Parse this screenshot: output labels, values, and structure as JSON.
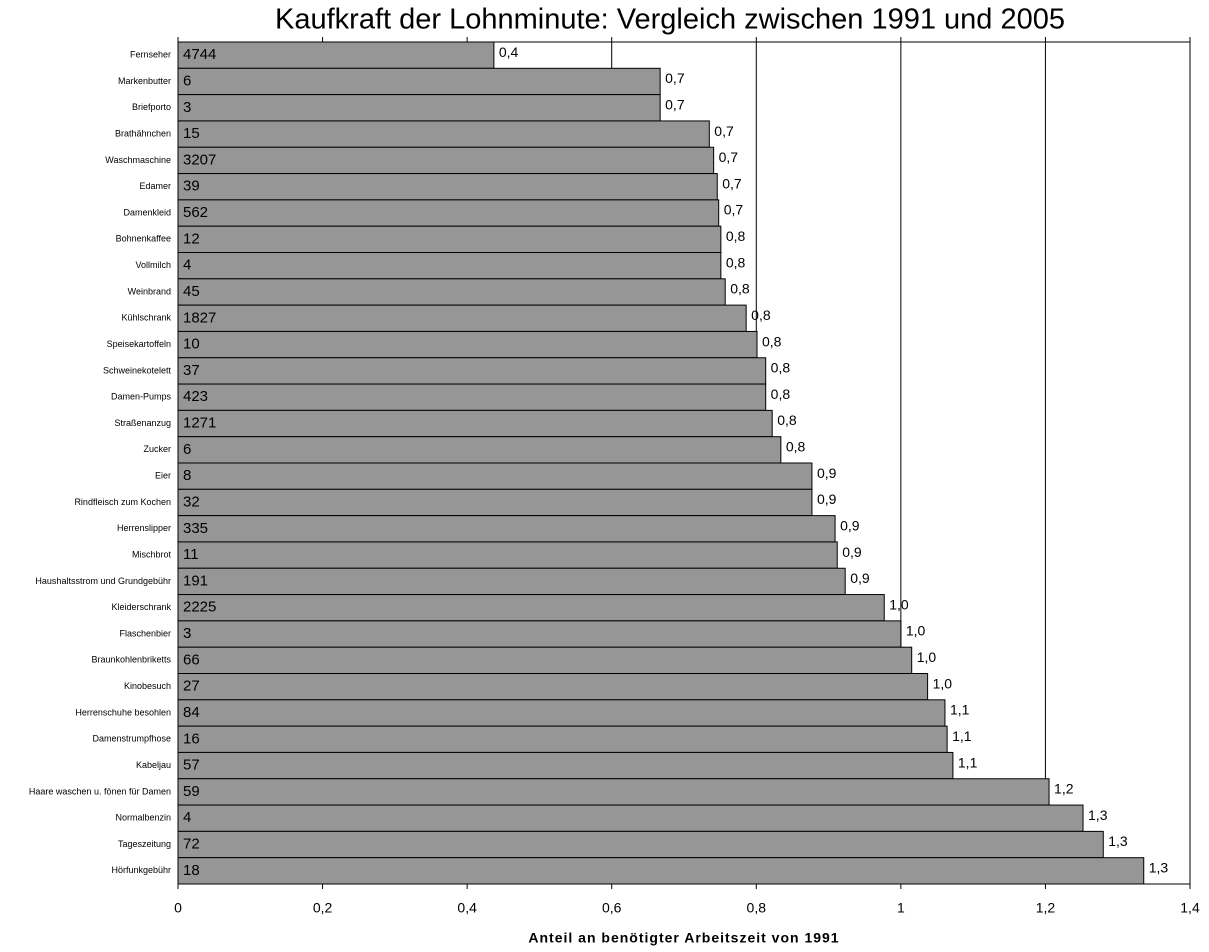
{
  "chart_data": {
    "type": "hbar",
    "title": "Kaufkraft der Lohnminute: Vergleich zwischen 1991 und 2005",
    "x_label": "Anteil an benötigter Arbeitszeit von 1991",
    "categories": [
      "Fernseher",
      "Markenbutter",
      "Briefporto",
      "Brathähnchen",
      "Waschmaschine",
      "Edamer",
      "Damenkleid",
      "Bohnenkaffee",
      "Vollmilch",
      "Weinbrand",
      "Kühlschrank",
      "Speisekartoffeln",
      "Schweinekotelett",
      "Damen-Pumps",
      "Straßenanzug",
      "Zucker",
      "Eier",
      "Rindfleisch zum Kochen",
      "Herrenslipper",
      "Mischbrot",
      "Haushaltsstrom und Grundgebühr",
      "Kleiderschrank",
      "Flaschenbier",
      "Braunkohlenbriketts",
      "Kinobesuch",
      "Herrenschuhe besohlen",
      "Damenstrumpfhose",
      "Kabeljau",
      "Haare waschen u. fönen für Damen",
      "Normalbenzin",
      "Tageszeitung",
      "Hörfunkgebühr"
    ],
    "values": [
      0.437,
      0.667,
      0.667,
      0.735,
      0.741,
      0.746,
      0.748,
      0.751,
      0.751,
      0.757,
      0.786,
      0.801,
      0.813,
      0.813,
      0.822,
      0.834,
      0.877,
      0.877,
      0.909,
      0.912,
      0.923,
      0.977,
      1.0,
      1.015,
      1.037,
      1.061,
      1.064,
      1.072,
      1.205,
      1.252,
      1.28,
      1.336
    ],
    "value_labels": [
      "0,4",
      "0,7",
      "0,7",
      "0,7",
      "0,7",
      "0,7",
      "0,7",
      "0,8",
      "0,8",
      "0,8",
      "0,8",
      "0,8",
      "0,8",
      "0,8",
      "0,8",
      "0,8",
      "0,9",
      "0,9",
      "0,9",
      "0,9",
      "0,9",
      "1,0",
      "1,0",
      "1,0",
      "1,0",
      "1,1",
      "1,1",
      "1,1",
      "1,2",
      "1,3",
      "1,3",
      "1,3"
    ],
    "inner_labels": [
      4744,
      6,
      3,
      15,
      3207,
      39,
      562,
      12,
      4,
      45,
      1827,
      10,
      37,
      423,
      1271,
      6,
      8,
      32,
      335,
      11,
      191,
      2225,
      3,
      66,
      27,
      84,
      16,
      57,
      59,
      4,
      72,
      18
    ],
    "color": "#969696",
    "xlim": [
      0,
      1.4
    ],
    "xticks": [
      0,
      {
        "value": 0.2,
        "label": "0,2"
      },
      {
        "value": 0.4,
        "label": "0,4"
      },
      {
        "value": 0.6,
        "label": "0,6"
      },
      {
        "value": 0.8,
        "label": "0,8"
      },
      1,
      {
        "value": 1.2,
        "label": "1,2"
      },
      {
        "value": 1.4,
        "label": "1,4"
      }
    ],
    "grid": true
  }
}
